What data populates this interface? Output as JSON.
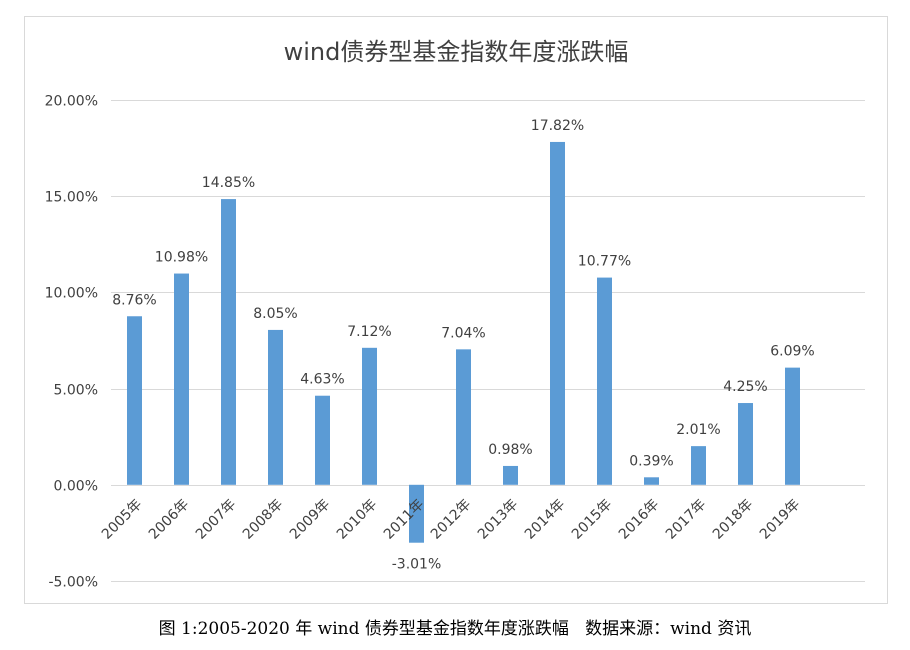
{
  "caption": "图 1:2005-2020 年 wind 债券型基金指数年度涨跌幅   数据来源：wind 资讯",
  "colors": {
    "bar": "#5b9bd5",
    "grid": "#d9d9d9",
    "text": "#404040"
  },
  "chart_data": {
    "type": "bar",
    "title": "wind债券型基金指数年度涨跌幅",
    "xlabel": "",
    "ylabel": "",
    "categories": [
      "2005年",
      "2006年",
      "2007年",
      "2008年",
      "2009年",
      "2010年",
      "2011年",
      "2012年",
      "2013年",
      "2014年",
      "2015年",
      "2016年",
      "2017年",
      "2018年",
      "2019年"
    ],
    "values": [
      8.76,
      10.98,
      14.85,
      8.05,
      4.63,
      7.12,
      -3.01,
      7.04,
      0.98,
      17.82,
      10.77,
      0.39,
      2.01,
      4.25,
      6.09
    ],
    "value_labels": [
      "8.76%",
      "10.98%",
      "14.85%",
      "8.05%",
      "4.63%",
      "7.12%",
      "-3.01%",
      "7.04%",
      "0.98%",
      "17.82%",
      "10.77%",
      "0.39%",
      "2.01%",
      "4.25%",
      "6.09%"
    ],
    "ylim": [
      -5,
      20
    ],
    "yticks": [
      -5,
      0,
      5,
      10,
      15,
      20
    ],
    "ytick_labels": [
      "-5.00%",
      "0.00%",
      "5.00%",
      "10.00%",
      "15.00%",
      "20.00%"
    ],
    "grid": true,
    "legend": "none"
  }
}
